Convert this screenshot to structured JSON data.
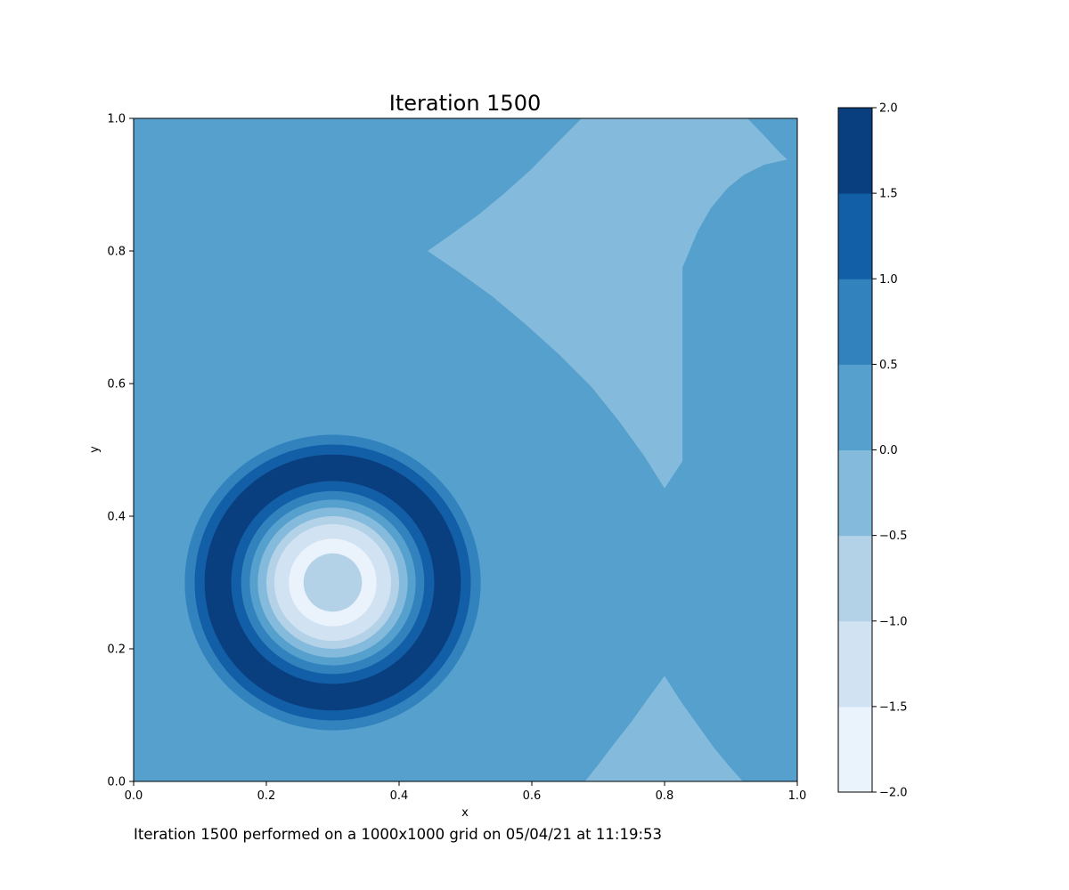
{
  "chart_data": {
    "type": "filled-contour",
    "title": "Iteration 1500",
    "xlabel": "x",
    "ylabel": "y",
    "xlim": [
      0.0,
      1.0
    ],
    "ylim": [
      0.0,
      1.0
    ],
    "x_ticks": [
      "0.0",
      "0.2",
      "0.4",
      "0.6",
      "0.8",
      "1.0"
    ],
    "y_ticks": [
      "0.0",
      "0.2",
      "0.4",
      "0.6",
      "0.8",
      "1.0"
    ],
    "grid": false,
    "colormap": "Blues",
    "colorbar": {
      "levels": [
        -2.0,
        -1.5,
        -1.0,
        -0.5,
        0.0,
        0.5,
        1.0,
        1.5,
        2.0
      ],
      "tick_labels": [
        "−2.0",
        "−1.5",
        "−1.0",
        "−0.5",
        "0.0",
        "0.5",
        "1.0",
        "1.5",
        "2.0"
      ],
      "colors": [
        "#eaf2fb",
        "#d1e2f2",
        "#b3d2e8",
        "#84badb",
        "#56a0ce",
        "#3282be",
        "#125ea7",
        "#0a3f7f"
      ]
    },
    "background_band": "0.0 to 0.5",
    "ring_feature": {
      "center": [
        0.3,
        0.3
      ],
      "bands": [
        {
          "outer_radius": 0.223,
          "band": "0.5 to 1.0"
        },
        {
          "outer_radius": 0.208,
          "band": "1.0 to 1.5"
        },
        {
          "outer_radius": 0.193,
          "band": "1.5 to 2.0"
        },
        {
          "outer_radius": 0.153,
          "band": "1.0 to 1.5"
        },
        {
          "outer_radius": 0.138,
          "band": "0.5 to 1.0"
        },
        {
          "outer_radius": 0.125,
          "band": "0.0 to 0.5"
        },
        {
          "outer_radius": 0.113,
          "band": "-0.5 to 0.0"
        },
        {
          "outer_radius": 0.1,
          "band": "-1.0 to -0.5"
        },
        {
          "outer_radius": 0.088,
          "band": "-1.5 to -1.0"
        },
        {
          "outer_radius": 0.066,
          "band": "-2.0 to -1.5"
        },
        {
          "outer_radius": 0.044,
          "band": "-1.0 to -0.5"
        }
      ]
    },
    "wave_regions": [
      {
        "band": "-0.5 to 0.0",
        "polygon": [
          [
            0.443,
            0.8
          ],
          [
            0.48,
            0.826
          ],
          [
            0.52,
            0.855
          ],
          [
            0.56,
            0.888
          ],
          [
            0.6,
            0.924
          ],
          [
            0.64,
            0.965
          ],
          [
            0.675,
            1.0
          ],
          [
            0.925,
            1.0
          ],
          [
            0.95,
            0.974
          ],
          [
            0.975,
            0.947
          ],
          [
            0.985,
            0.938
          ],
          [
            0.95,
            0.93
          ],
          [
            0.92,
            0.915
          ],
          [
            0.895,
            0.895
          ],
          [
            0.87,
            0.865
          ],
          [
            0.85,
            0.83
          ],
          [
            0.827,
            0.775
          ],
          [
            0.827,
            0.483
          ],
          [
            0.8,
            0.442
          ],
          [
            0.77,
            0.49
          ],
          [
            0.73,
            0.545
          ],
          [
            0.69,
            0.595
          ],
          [
            0.64,
            0.645
          ],
          [
            0.59,
            0.69
          ],
          [
            0.54,
            0.732
          ],
          [
            0.49,
            0.768
          ]
        ]
      },
      {
        "band": "-0.5 to 0.0",
        "polygon": [
          [
            0.68,
            0.0
          ],
          [
            0.7,
            0.025
          ],
          [
            0.725,
            0.058
          ],
          [
            0.75,
            0.09
          ],
          [
            0.775,
            0.125
          ],
          [
            0.8,
            0.159
          ],
          [
            0.825,
            0.12
          ],
          [
            0.85,
            0.085
          ],
          [
            0.875,
            0.05
          ],
          [
            0.9,
            0.02
          ],
          [
            0.918,
            0.0
          ]
        ]
      }
    ]
  },
  "footnote": "Iteration 1500 performed on a 1000x1000 grid on 05/04/21 at 11:19:53"
}
